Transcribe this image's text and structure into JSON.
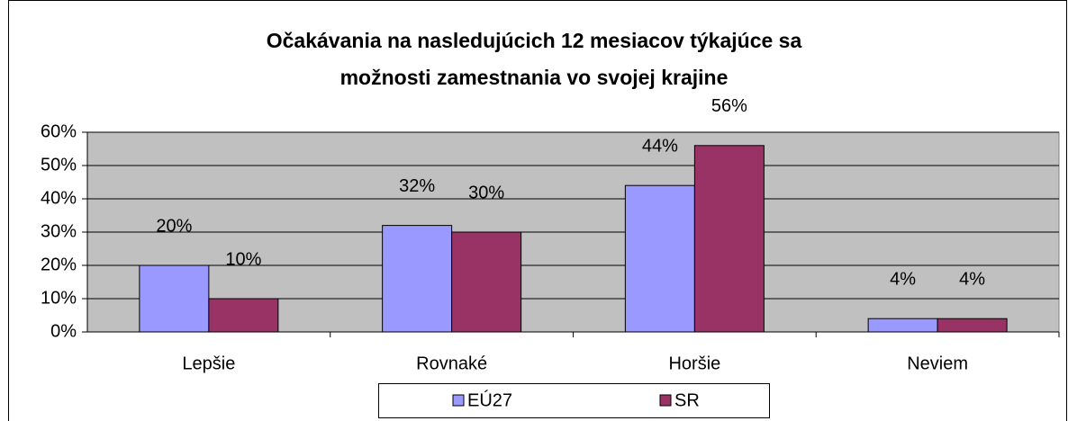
{
  "chart_data": {
    "type": "bar",
    "title": [
      "Očakávania na nasledujúcich 12 mesiacov týkajúce sa",
      "možnosti zamestnania vo svojej krajine"
    ],
    "categories": [
      "Lepšie",
      "Rovnaké",
      "Horšie",
      "Neviem"
    ],
    "series": [
      {
        "name": "EÚ27",
        "color": "#9999ff",
        "values": [
          20,
          32,
          44,
          4
        ],
        "value_labels": [
          "20%",
          "32%",
          "44%",
          "4%"
        ]
      },
      {
        "name": "SR",
        "color": "#993366",
        "values": [
          10,
          30,
          56,
          4
        ],
        "value_labels": [
          "10%",
          "30%",
          "56%",
          "4%"
        ]
      }
    ],
    "ylim": [
      0,
      60
    ],
    "yticks": [
      {
        "value": 0,
        "label": "0%"
      },
      {
        "value": 10,
        "label": "10%"
      },
      {
        "value": 20,
        "label": "20%"
      },
      {
        "value": 30,
        "label": "30%"
      },
      {
        "value": 40,
        "label": "40%"
      },
      {
        "value": 50,
        "label": "50%"
      },
      {
        "value": 60,
        "label": "60%"
      }
    ],
    "grid": true,
    "legend": "bottom",
    "plot_background": "#c0c0c0"
  }
}
